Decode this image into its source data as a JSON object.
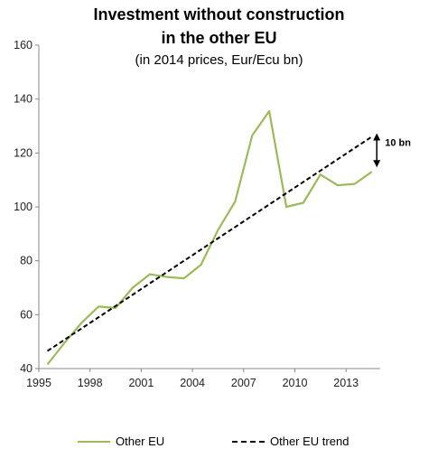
{
  "chart_data": {
    "type": "line",
    "title_line1": "Investment without construction",
    "title_line2": "in the other EU",
    "subtitle": "(in 2014 prices, Eur/Ecu bn)",
    "xlabel": "",
    "ylabel": "",
    "xlim": [
      1995,
      2015
    ],
    "ylim": [
      40,
      160
    ],
    "x_ticks": [
      "1995",
      "1998",
      "2001",
      "2004",
      "2007",
      "2010",
      "2013"
    ],
    "y_ticks": [
      "40",
      "60",
      "80",
      "100",
      "120",
      "140",
      "160"
    ],
    "grid": false,
    "legend_position": "bottom",
    "series": [
      {
        "name": "Other EU",
        "color": "#9bbb59",
        "style": "solid",
        "x": [
          1995.5,
          1996.5,
          1997.5,
          1998.5,
          1999.5,
          2000.5,
          2001.5,
          2002.5,
          2003.5,
          2004.5,
          2005.5,
          2006.5,
          2007.5,
          2008.5,
          2009.5,
          2010.5,
          2011.5,
          2012.5,
          2013.5,
          2014.5
        ],
        "values": [
          41.5,
          49.5,
          57,
          63,
          62.5,
          70,
          75,
          74,
          73.5,
          78.5,
          91.5,
          102,
          126.5,
          135.5,
          100,
          101.5,
          112,
          108,
          108.5,
          113
        ]
      },
      {
        "name": "Other EU trend",
        "color": "#000000",
        "style": "dashed",
        "x": [
          1995.5,
          2014.5
        ],
        "values": [
          46.5,
          126
        ]
      }
    ],
    "annotations": [
      {
        "text": "10 bn",
        "x": 2014.8,
        "from": 114,
        "to": 128
      }
    ]
  }
}
